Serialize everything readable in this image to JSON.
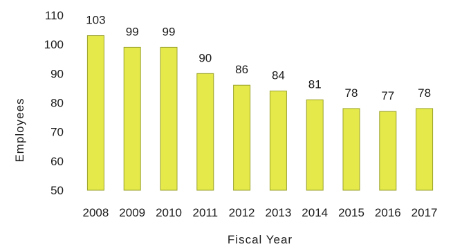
{
  "chart_data": {
    "type": "bar",
    "categories": [
      "2008",
      "2009",
      "2010",
      "2011",
      "2012",
      "2013",
      "2014",
      "2015",
      "2016",
      "2017"
    ],
    "values": [
      103,
      99,
      99,
      90,
      86,
      84,
      81,
      78,
      77,
      78
    ],
    "xlabel": "Fiscal Year",
    "ylabel": "Employees",
    "ylim": [
      50,
      110
    ],
    "yticks": [
      50,
      60,
      70,
      80,
      90,
      100,
      110
    ],
    "grid": false,
    "legend": "none",
    "bar_color": "#e5ea4a",
    "bar_edge_color": "#9aa12a"
  }
}
